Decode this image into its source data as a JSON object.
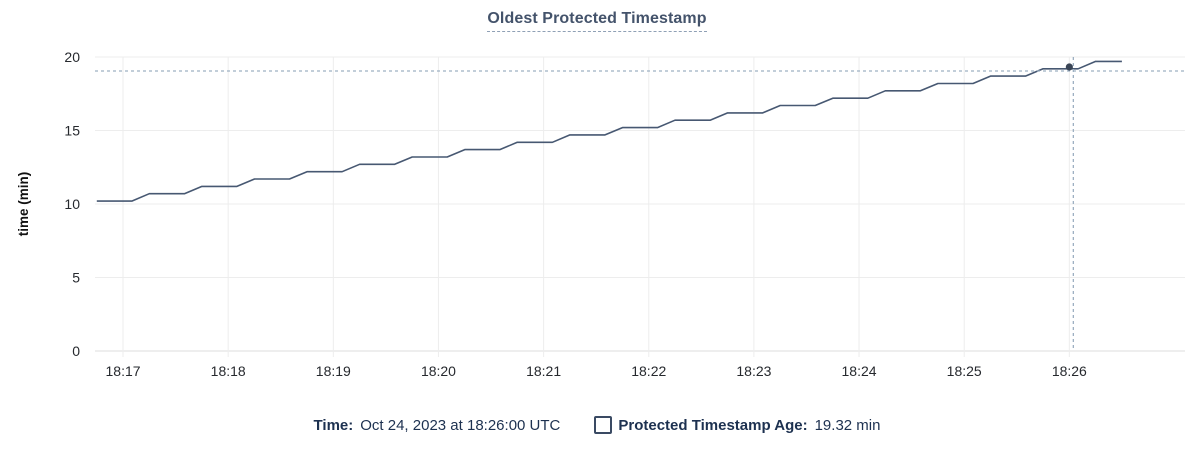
{
  "title": {
    "text": "Oldest Protected Timestamp"
  },
  "legend": {
    "time_label": "Time:",
    "time_value": "Oct 24, 2023 at 18:26:00 UTC",
    "series_checkbox_icon": "unchecked-square-icon",
    "series_label": "Protected Timestamp Age:",
    "series_value": "19.32 min"
  },
  "colors": {
    "line": "#475872",
    "hover_dot": "#394455",
    "crosshair": "#9db0c2",
    "grid": "#ededed",
    "axis": "#dedede",
    "tick_text": "#26292e",
    "title_text": "#44536b",
    "legend_text": "#1d3150"
  },
  "chart_data": {
    "type": "line",
    "title": "Oldest Protected Timestamp",
    "xlabel": "",
    "ylabel": "time (min)",
    "ylim": [
      0,
      20
    ],
    "yticks": [
      0,
      5,
      10,
      15,
      20
    ],
    "grid": "on",
    "legend_position": "bottom",
    "x_unit": "seconds after 18:17:00",
    "x_domain_seconds": [
      -16,
      606
    ],
    "xticks": [
      {
        "t": 0,
        "label": "18:17"
      },
      {
        "t": 60,
        "label": "18:18"
      },
      {
        "t": 120,
        "label": "18:19"
      },
      {
        "t": 180,
        "label": "18:20"
      },
      {
        "t": 240,
        "label": "18:21"
      },
      {
        "t": 300,
        "label": "18:22"
      },
      {
        "t": 360,
        "label": "18:23"
      },
      {
        "t": 420,
        "label": "18:24"
      },
      {
        "t": 480,
        "label": "18:25"
      },
      {
        "t": 540,
        "label": "18:26"
      }
    ],
    "series": [
      {
        "name": "Protected Timestamp Age",
        "unit": "min",
        "points": [
          [
            -15,
            10.2
          ],
          [
            5,
            10.2
          ],
          [
            15,
            10.7
          ],
          [
            35,
            10.7
          ],
          [
            45,
            11.2
          ],
          [
            65,
            11.2
          ],
          [
            75,
            11.7
          ],
          [
            95,
            11.7
          ],
          [
            105,
            12.2
          ],
          [
            125,
            12.2
          ],
          [
            135,
            12.7
          ],
          [
            155,
            12.7
          ],
          [
            165,
            13.2
          ],
          [
            185,
            13.2
          ],
          [
            195,
            13.7
          ],
          [
            215,
            13.7
          ],
          [
            225,
            14.2
          ],
          [
            245,
            14.2
          ],
          [
            255,
            14.7
          ],
          [
            275,
            14.7
          ],
          [
            285,
            15.2
          ],
          [
            305,
            15.2
          ],
          [
            315,
            15.7
          ],
          [
            335,
            15.7
          ],
          [
            345,
            16.2
          ],
          [
            365,
            16.2
          ],
          [
            375,
            16.7
          ],
          [
            395,
            16.7
          ],
          [
            405,
            17.2
          ],
          [
            425,
            17.2
          ],
          [
            435,
            17.7
          ],
          [
            455,
            17.7
          ],
          [
            465,
            18.2
          ],
          [
            485,
            18.2
          ],
          [
            495,
            18.7
          ],
          [
            515,
            18.7
          ],
          [
            525,
            19.2
          ],
          [
            545,
            19.2
          ],
          [
            555,
            19.7
          ],
          [
            570,
            19.7
          ]
        ]
      }
    ],
    "hover": {
      "t": 540,
      "value": 19.32,
      "time_label": "Oct 24, 2023 at 18:26:00 UTC",
      "value_label": "19.32 min"
    }
  }
}
